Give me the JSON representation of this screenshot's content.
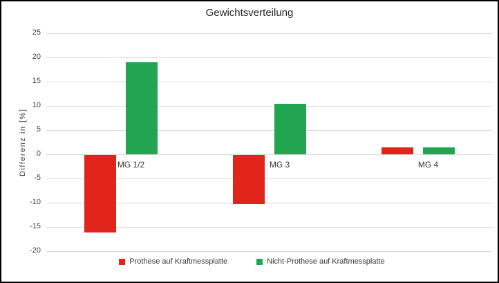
{
  "chart_data": {
    "type": "bar",
    "title": "Gewichtsverteilung",
    "xlabel": "",
    "ylabel": "Differenz in [%]",
    "categories": [
      "MG 1/2",
      "MG 3",
      "MG 4"
    ],
    "series": [
      {
        "name": "Prothese auf Kraftmessplatte",
        "color": "#e1251b",
        "values": [
          -16,
          -10.2,
          1.4
        ]
      },
      {
        "name": "Nicht-Prothese auf Kraftmessplatte",
        "color": "#21a550",
        "values": [
          19,
          10.5,
          1.4
        ]
      }
    ],
    "yticks": [
      25,
      20,
      15,
      10,
      5,
      0,
      -5,
      -10,
      -15,
      -20
    ],
    "ylim": [
      -20,
      25
    ],
    "grid": true,
    "legend_position": "bottom",
    "gridline_color": "#d9d9d9",
    "axis_text_color": "#404040",
    "title_color": "#262626"
  }
}
